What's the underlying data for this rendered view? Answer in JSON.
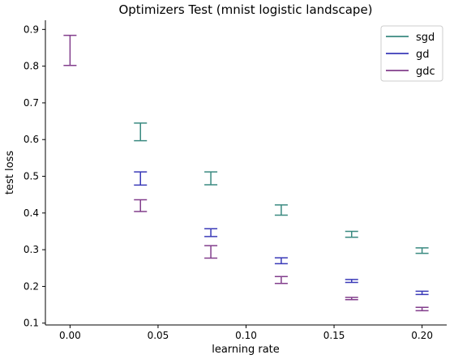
{
  "chart_data": {
    "type": "errorbar",
    "title": "Optimizers Test (mnist logistic landscape)",
    "xlabel": "learning rate",
    "ylabel": "test loss",
    "xlim": [
      -0.014,
      0.214
    ],
    "ylim": [
      0.095,
      0.925
    ],
    "xticks": [
      "0.00",
      "0.05",
      "0.10",
      "0.15",
      "0.20"
    ],
    "yticks": [
      "0.1",
      "0.2",
      "0.3",
      "0.4",
      "0.5",
      "0.6",
      "0.7",
      "0.8",
      "0.9"
    ],
    "legend_position": "top-right",
    "series": [
      {
        "name": "sgd",
        "color": "#3a8a80",
        "points": [
          {
            "x": 0.04,
            "low": 0.597,
            "high": 0.645
          },
          {
            "x": 0.08,
            "low": 0.477,
            "high": 0.512
          },
          {
            "x": 0.12,
            "low": 0.394,
            "high": 0.422
          },
          {
            "x": 0.16,
            "low": 0.334,
            "high": 0.35
          },
          {
            "x": 0.2,
            "low": 0.29,
            "high": 0.305
          }
        ]
      },
      {
        "name": "gd",
        "color": "#3a3ab8",
        "points": [
          {
            "x": 0.04,
            "low": 0.476,
            "high": 0.512
          },
          {
            "x": 0.08,
            "low": 0.336,
            "high": 0.357
          },
          {
            "x": 0.12,
            "low": 0.262,
            "high": 0.278
          },
          {
            "x": 0.16,
            "low": 0.211,
            "high": 0.219
          },
          {
            "x": 0.2,
            "low": 0.178,
            "high": 0.187
          }
        ]
      },
      {
        "name": "gdc",
        "color": "#823e8c",
        "points": [
          {
            "x": 0.0,
            "low": 0.802,
            "high": 0.884
          },
          {
            "x": 0.04,
            "low": 0.404,
            "high": 0.436
          },
          {
            "x": 0.08,
            "low": 0.277,
            "high": 0.311
          },
          {
            "x": 0.12,
            "low": 0.208,
            "high": 0.227
          },
          {
            "x": 0.16,
            "low": 0.164,
            "high": 0.17
          },
          {
            "x": 0.2,
            "low": 0.134,
            "high": 0.143
          }
        ]
      }
    ]
  }
}
